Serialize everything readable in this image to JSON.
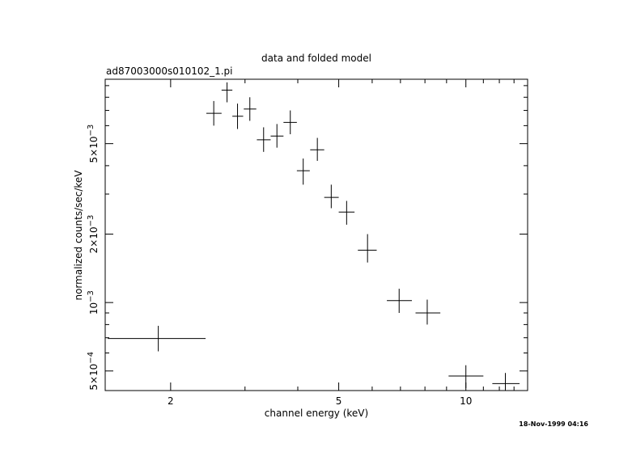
{
  "chart_data": {
    "type": "scatter",
    "title": "data and folded model",
    "subtitle": "ad87003000s010102_1.pi",
    "xlabel": "channel energy (keV)",
    "ylabel": "normalized counts/sec/keV",
    "xscale": "log",
    "yscale": "log",
    "xlim": [
      1.4,
      14.0
    ],
    "ylim": [
      0.00041,
      0.0096
    ],
    "grid": false,
    "legend": "none",
    "x_ticks": [
      {
        "value": 2,
        "label": "2"
      },
      {
        "value": 5,
        "label": "5"
      },
      {
        "value": 10,
        "label": "10"
      }
    ],
    "y_ticks": [
      {
        "value": 0.0005,
        "mantissa": "5×10",
        "exponent": "−4"
      },
      {
        "value": 0.001,
        "mantissa": "10",
        "exponent": "−3"
      },
      {
        "value": 0.002,
        "mantissa": "2×10",
        "exponent": "−3"
      },
      {
        "value": 0.005,
        "mantissa": "5×10",
        "exponent": "−3"
      }
    ],
    "points": [
      {
        "x": 1.87,
        "xlo": 1.42,
        "xhi": 2.42,
        "y": 0.000695,
        "ylo": 0.00061,
        "yhi": 0.00079
      },
      {
        "x": 2.53,
        "xlo": 2.43,
        "xhi": 2.64,
        "y": 0.0068,
        "ylo": 0.006,
        "yhi": 0.0077
      },
      {
        "x": 2.72,
        "xlo": 2.64,
        "xhi": 2.8,
        "y": 0.0086,
        "ylo": 0.0076,
        "yhi": 0.0093
      },
      {
        "x": 2.88,
        "xlo": 2.8,
        "xhi": 2.97,
        "y": 0.0066,
        "ylo": 0.0058,
        "yhi": 0.0075
      },
      {
        "x": 3.08,
        "xlo": 2.98,
        "xhi": 3.19,
        "y": 0.0071,
        "ylo": 0.0063,
        "yhi": 0.008
      },
      {
        "x": 3.32,
        "xlo": 3.2,
        "xhi": 3.45,
        "y": 0.0052,
        "ylo": 0.0046,
        "yhi": 0.0059
      },
      {
        "x": 3.57,
        "xlo": 3.45,
        "xhi": 3.7,
        "y": 0.0054,
        "ylo": 0.0048,
        "yhi": 0.0061
      },
      {
        "x": 3.84,
        "xlo": 3.7,
        "xhi": 3.98,
        "y": 0.0062,
        "ylo": 0.0055,
        "yhi": 0.007
      },
      {
        "x": 4.12,
        "xlo": 3.98,
        "xhi": 4.27,
        "y": 0.0038,
        "ylo": 0.0033,
        "yhi": 0.0043
      },
      {
        "x": 4.45,
        "xlo": 4.28,
        "xhi": 4.62,
        "y": 0.0047,
        "ylo": 0.0042,
        "yhi": 0.0053
      },
      {
        "x": 4.8,
        "xlo": 4.62,
        "xhi": 5.0,
        "y": 0.0029,
        "ylo": 0.0026,
        "yhi": 0.0033
      },
      {
        "x": 5.22,
        "xlo": 5.0,
        "xhi": 5.45,
        "y": 0.0025,
        "ylo": 0.0022,
        "yhi": 0.0028
      },
      {
        "x": 5.85,
        "xlo": 5.55,
        "xhi": 6.15,
        "y": 0.0017,
        "ylo": 0.0015,
        "yhi": 0.002
      },
      {
        "x": 6.95,
        "xlo": 6.5,
        "xhi": 7.45,
        "y": 0.00102,
        "ylo": 0.0009,
        "yhi": 0.00115
      },
      {
        "x": 8.1,
        "xlo": 7.6,
        "xhi": 8.7,
        "y": 0.0009,
        "ylo": 0.0008,
        "yhi": 0.00103
      },
      {
        "x": 10.0,
        "xlo": 9.1,
        "xhi": 11.0,
        "y": 0.000475,
        "ylo": 0.00042,
        "yhi": 0.00053
      },
      {
        "x": 12.4,
        "xlo": 11.55,
        "xhi": 13.4,
        "y": 0.00044,
        "ylo": 0.00041,
        "yhi": 0.00049
      }
    ]
  },
  "timestamp": "18-Nov-1999 04:16"
}
